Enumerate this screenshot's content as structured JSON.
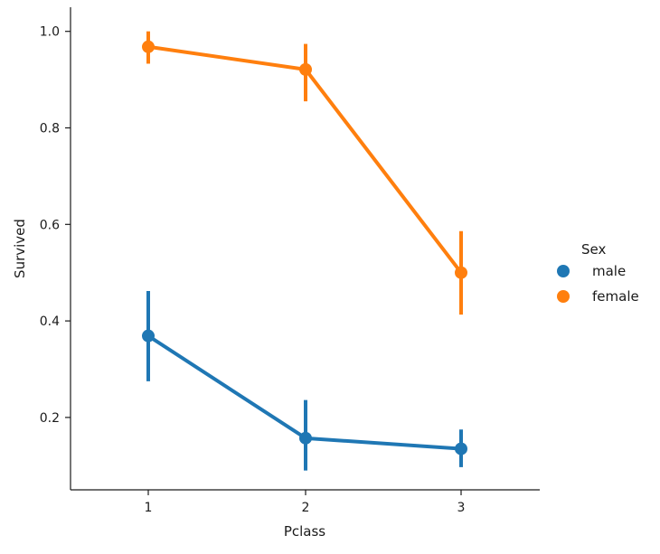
{
  "chart_data": {
    "type": "line",
    "categories": [
      "1",
      "2",
      "3"
    ],
    "x": [
      1,
      2,
      3
    ],
    "series": [
      {
        "name": "male",
        "color": "#1f77b4",
        "values": [
          0.369,
          0.157,
          0.135
        ],
        "ci_low": [
          0.275,
          0.09,
          0.097
        ],
        "ci_high": [
          0.462,
          0.236,
          0.175
        ]
      },
      {
        "name": "female",
        "color": "#ff7f0e",
        "values": [
          0.968,
          0.921,
          0.5
        ],
        "ci_low": [
          0.933,
          0.855,
          0.413
        ],
        "ci_high": [
          1.0,
          0.974,
          0.586
        ]
      }
    ],
    "xlabel": "Pclass",
    "ylabel": "Survived",
    "ylim": [
      0.05,
      1.05
    ],
    "yticks": [
      0.2,
      0.4,
      0.6,
      0.8,
      1.0
    ],
    "ytick_labels": [
      "0.2",
      "0.4",
      "0.6",
      "0.8",
      "1.0"
    ],
    "legend": {
      "title": "Sex",
      "entries": [
        "male",
        "female"
      ],
      "placement": "right"
    },
    "grid": false
  }
}
